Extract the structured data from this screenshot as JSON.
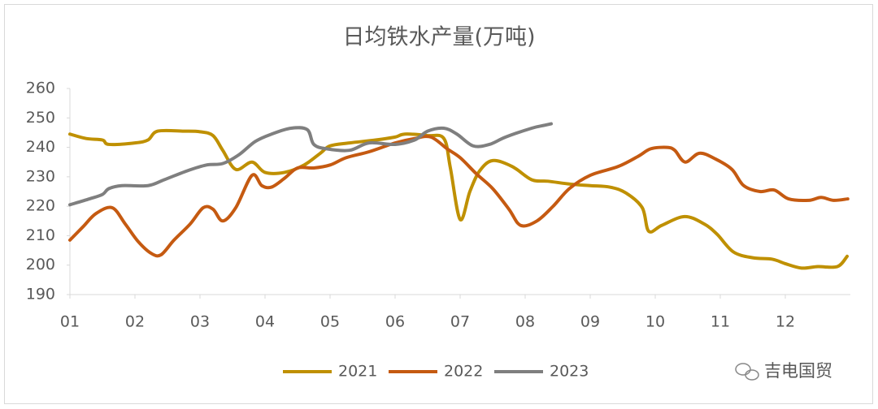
{
  "chart_data": {
    "type": "line",
    "title": "日均铁水产量(万吨)",
    "xlim": [
      1,
      13
    ],
    "xticks": [
      {
        "value": 1,
        "label": "01"
      },
      {
        "value": 2,
        "label": "02"
      },
      {
        "value": 3,
        "label": "03"
      },
      {
        "value": 4,
        "label": "04"
      },
      {
        "value": 5,
        "label": "05"
      },
      {
        "value": 6,
        "label": "06"
      },
      {
        "value": 7,
        "label": "07"
      },
      {
        "value": 8,
        "label": "08"
      },
      {
        "value": 9,
        "label": "09"
      },
      {
        "value": 10,
        "label": "10"
      },
      {
        "value": 11,
        "label": "11"
      },
      {
        "value": 12,
        "label": "12"
      }
    ],
    "ylim": [
      190,
      260
    ],
    "yticks": [
      190,
      200,
      210,
      220,
      230,
      240,
      250,
      260
    ],
    "grid": false,
    "legend": "bottom",
    "watermark": "吉电国贸",
    "series": [
      {
        "name": "2021",
        "color": "#bf9000",
        "x": [
          1.0,
          1.25,
          1.5,
          1.6,
          2.0,
          2.2,
          2.35,
          2.75,
          3.0,
          3.2,
          3.35,
          3.55,
          3.8,
          4.0,
          4.3,
          4.6,
          4.85,
          5.0,
          5.3,
          5.7,
          6.0,
          6.15,
          6.5,
          6.75,
          6.85,
          7.0,
          7.15,
          7.3,
          7.5,
          7.8,
          8.1,
          8.35,
          8.7,
          9.0,
          9.3,
          9.55,
          9.8,
          9.9,
          10.1,
          10.45,
          10.75,
          10.95,
          11.2,
          11.5,
          11.8,
          12.0,
          12.25,
          12.5,
          12.8,
          12.95
        ],
        "values": [
          244.5,
          243,
          242.5,
          241,
          241.5,
          242.5,
          245.5,
          245.5,
          245.3,
          244,
          239,
          232.5,
          235,
          231.5,
          231.5,
          234,
          238,
          240.5,
          241.5,
          242.5,
          243.5,
          244.5,
          244,
          243,
          233,
          215.5,
          225,
          232,
          235.5,
          233.5,
          229,
          228.5,
          227.5,
          227,
          226.5,
          224.5,
          219.5,
          211.5,
          213.5,
          216.5,
          214,
          210.5,
          204.5,
          202.5,
          202,
          200.5,
          199,
          199.5,
          199.5,
          203
        ]
      },
      {
        "name": "2022",
        "color": "#c55a11",
        "x": [
          1.0,
          1.2,
          1.4,
          1.65,
          1.85,
          2.05,
          2.25,
          2.4,
          2.6,
          2.85,
          3.05,
          3.2,
          3.35,
          3.55,
          3.8,
          3.95,
          4.1,
          4.3,
          4.5,
          4.75,
          5.0,
          5.25,
          5.6,
          6.0,
          6.3,
          6.55,
          6.8,
          7.0,
          7.25,
          7.5,
          7.75,
          7.93,
          8.18,
          8.43,
          8.68,
          9.0,
          9.43,
          9.74,
          9.93,
          10.18,
          10.3,
          10.46,
          10.68,
          10.93,
          11.18,
          11.36,
          11.61,
          11.83,
          12.05,
          12.36,
          12.55,
          12.74,
          12.96
        ],
        "values": [
          208.5,
          213,
          217.5,
          219.5,
          214,
          208,
          204,
          203.5,
          208.5,
          214,
          219.5,
          219,
          215,
          219.5,
          230.5,
          227,
          226.5,
          229.5,
          233,
          233,
          234,
          236.5,
          238.5,
          241.5,
          243,
          243.5,
          239.5,
          236.5,
          231,
          226,
          219,
          213.5,
          215,
          220,
          226,
          230.5,
          233.5,
          237,
          239.5,
          240,
          239,
          235,
          238,
          236,
          232.5,
          227,
          225,
          225.5,
          222.5,
          222,
          223,
          222,
          222.5
        ]
      },
      {
        "name": "2023",
        "color": "#7f7f7f",
        "x": [
          1.0,
          1.3,
          1.5,
          1.6,
          1.8,
          2.2,
          2.45,
          2.8,
          3.1,
          3.35,
          3.6,
          3.85,
          4.1,
          4.4,
          4.65,
          4.75,
          4.95,
          5.3,
          5.6,
          6.0,
          6.3,
          6.5,
          6.75,
          6.95,
          7.2,
          7.45,
          7.7,
          8.1,
          8.3,
          8.4
        ],
        "values": [
          220.5,
          222.5,
          224,
          226,
          227,
          227,
          229,
          232,
          234,
          234.5,
          237.5,
          242,
          244.5,
          246.5,
          246,
          241,
          239.5,
          239,
          241.5,
          241,
          242.5,
          245.5,
          246.5,
          244.5,
          240.5,
          241,
          243.5,
          246.5,
          247.5,
          248
        ]
      }
    ]
  }
}
